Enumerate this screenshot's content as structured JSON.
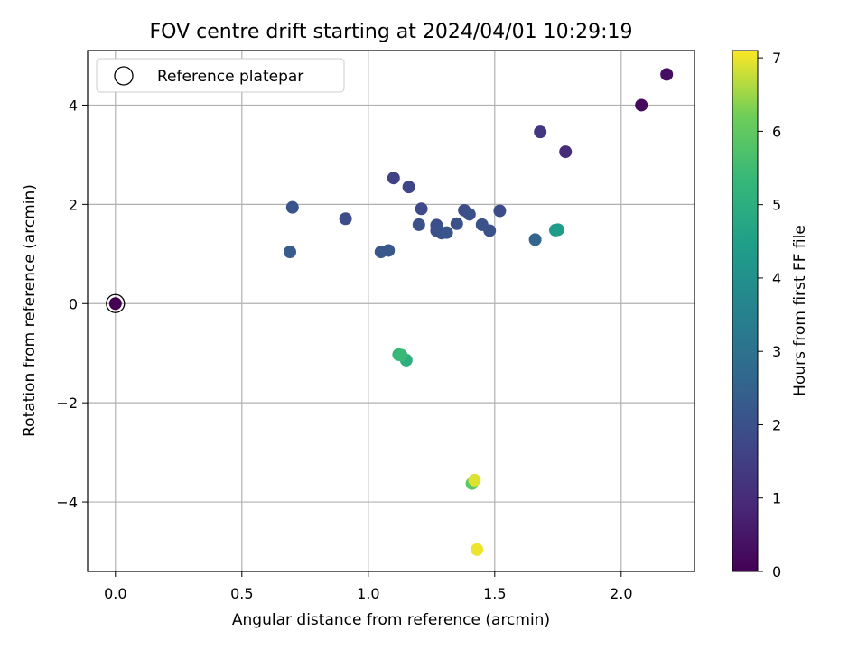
{
  "chart_data": {
    "type": "scatter",
    "title": "FOV centre drift starting at 2024/04/01 10:29:19",
    "xlabel": "Angular distance from reference (arcmin)",
    "ylabel": "Rotation from reference (arcmin)",
    "xlim": [
      -0.11,
      2.29
    ],
    "ylim": [
      -5.4,
      5.1
    ],
    "xticks": [
      0.0,
      0.5,
      1.0,
      1.5,
      2.0
    ],
    "xtick_labels": [
      "0.0",
      "0.5",
      "1.0",
      "1.5",
      "2.0"
    ],
    "yticks": [
      -4,
      -2,
      0,
      2,
      4
    ],
    "ytick_labels": [
      "−4",
      "−2",
      "0",
      "2",
      "4"
    ],
    "grid": true,
    "legend": {
      "placement": "top-left",
      "entries": [
        {
          "label": "Reference platepar",
          "marker": "open-circle"
        }
      ]
    },
    "colorbar": {
      "label": "Hours from first FF file",
      "colormap": "viridis",
      "range": [
        0,
        7.1
      ],
      "ticks": [
        0,
        1,
        2,
        3,
        4,
        5,
        6,
        7
      ],
      "tick_labels": [
        "0",
        "1",
        "2",
        "3",
        "4",
        "5",
        "6",
        "7"
      ]
    },
    "reference_point": {
      "x": 0.0,
      "y": 0.0
    },
    "points": [
      {
        "x": 0.0,
        "y": 0.0,
        "hours": 0.0
      },
      {
        "x": 2.08,
        "y": 4.0,
        "hours": 0.2
      },
      {
        "x": 2.18,
        "y": 4.62,
        "hours": 0.3
      },
      {
        "x": 1.78,
        "y": 3.06,
        "hours": 1.0
      },
      {
        "x": 1.68,
        "y": 3.46,
        "hours": 1.3
      },
      {
        "x": 1.1,
        "y": 2.53,
        "hours": 1.6
      },
      {
        "x": 1.16,
        "y": 2.35,
        "hours": 1.7
      },
      {
        "x": 1.21,
        "y": 1.91,
        "hours": 1.8
      },
      {
        "x": 0.91,
        "y": 1.71,
        "hours": 1.9
      },
      {
        "x": 1.38,
        "y": 1.88,
        "hours": 1.9
      },
      {
        "x": 1.27,
        "y": 1.58,
        "hours": 1.9
      },
      {
        "x": 1.52,
        "y": 1.87,
        "hours": 1.9
      },
      {
        "x": 1.4,
        "y": 1.8,
        "hours": 2.0
      },
      {
        "x": 1.35,
        "y": 1.61,
        "hours": 2.0
      },
      {
        "x": 1.2,
        "y": 1.59,
        "hours": 2.0
      },
      {
        "x": 1.45,
        "y": 1.59,
        "hours": 2.0
      },
      {
        "x": 1.48,
        "y": 1.47,
        "hours": 2.0
      },
      {
        "x": 1.27,
        "y": 1.47,
        "hours": 2.0
      },
      {
        "x": 1.29,
        "y": 1.42,
        "hours": 2.0
      },
      {
        "x": 1.31,
        "y": 1.43,
        "hours": 2.1
      },
      {
        "x": 0.7,
        "y": 1.94,
        "hours": 2.1
      },
      {
        "x": 1.08,
        "y": 1.07,
        "hours": 2.2
      },
      {
        "x": 1.05,
        "y": 1.04,
        "hours": 2.2
      },
      {
        "x": 0.69,
        "y": 1.04,
        "hours": 2.3
      },
      {
        "x": 1.66,
        "y": 1.29,
        "hours": 2.6
      },
      {
        "x": 1.74,
        "y": 1.48,
        "hours": 4.3
      },
      {
        "x": 1.75,
        "y": 1.49,
        "hours": 4.4
      },
      {
        "x": 1.15,
        "y": -1.14,
        "hours": 5.0
      },
      {
        "x": 1.12,
        "y": -1.03,
        "hours": 5.3
      },
      {
        "x": 1.13,
        "y": -1.04,
        "hours": 5.4
      },
      {
        "x": 1.41,
        "y": -3.63,
        "hours": 5.9
      },
      {
        "x": 1.42,
        "y": -3.56,
        "hours": 6.9
      },
      {
        "x": 1.43,
        "y": -4.96,
        "hours": 7.0
      }
    ]
  }
}
